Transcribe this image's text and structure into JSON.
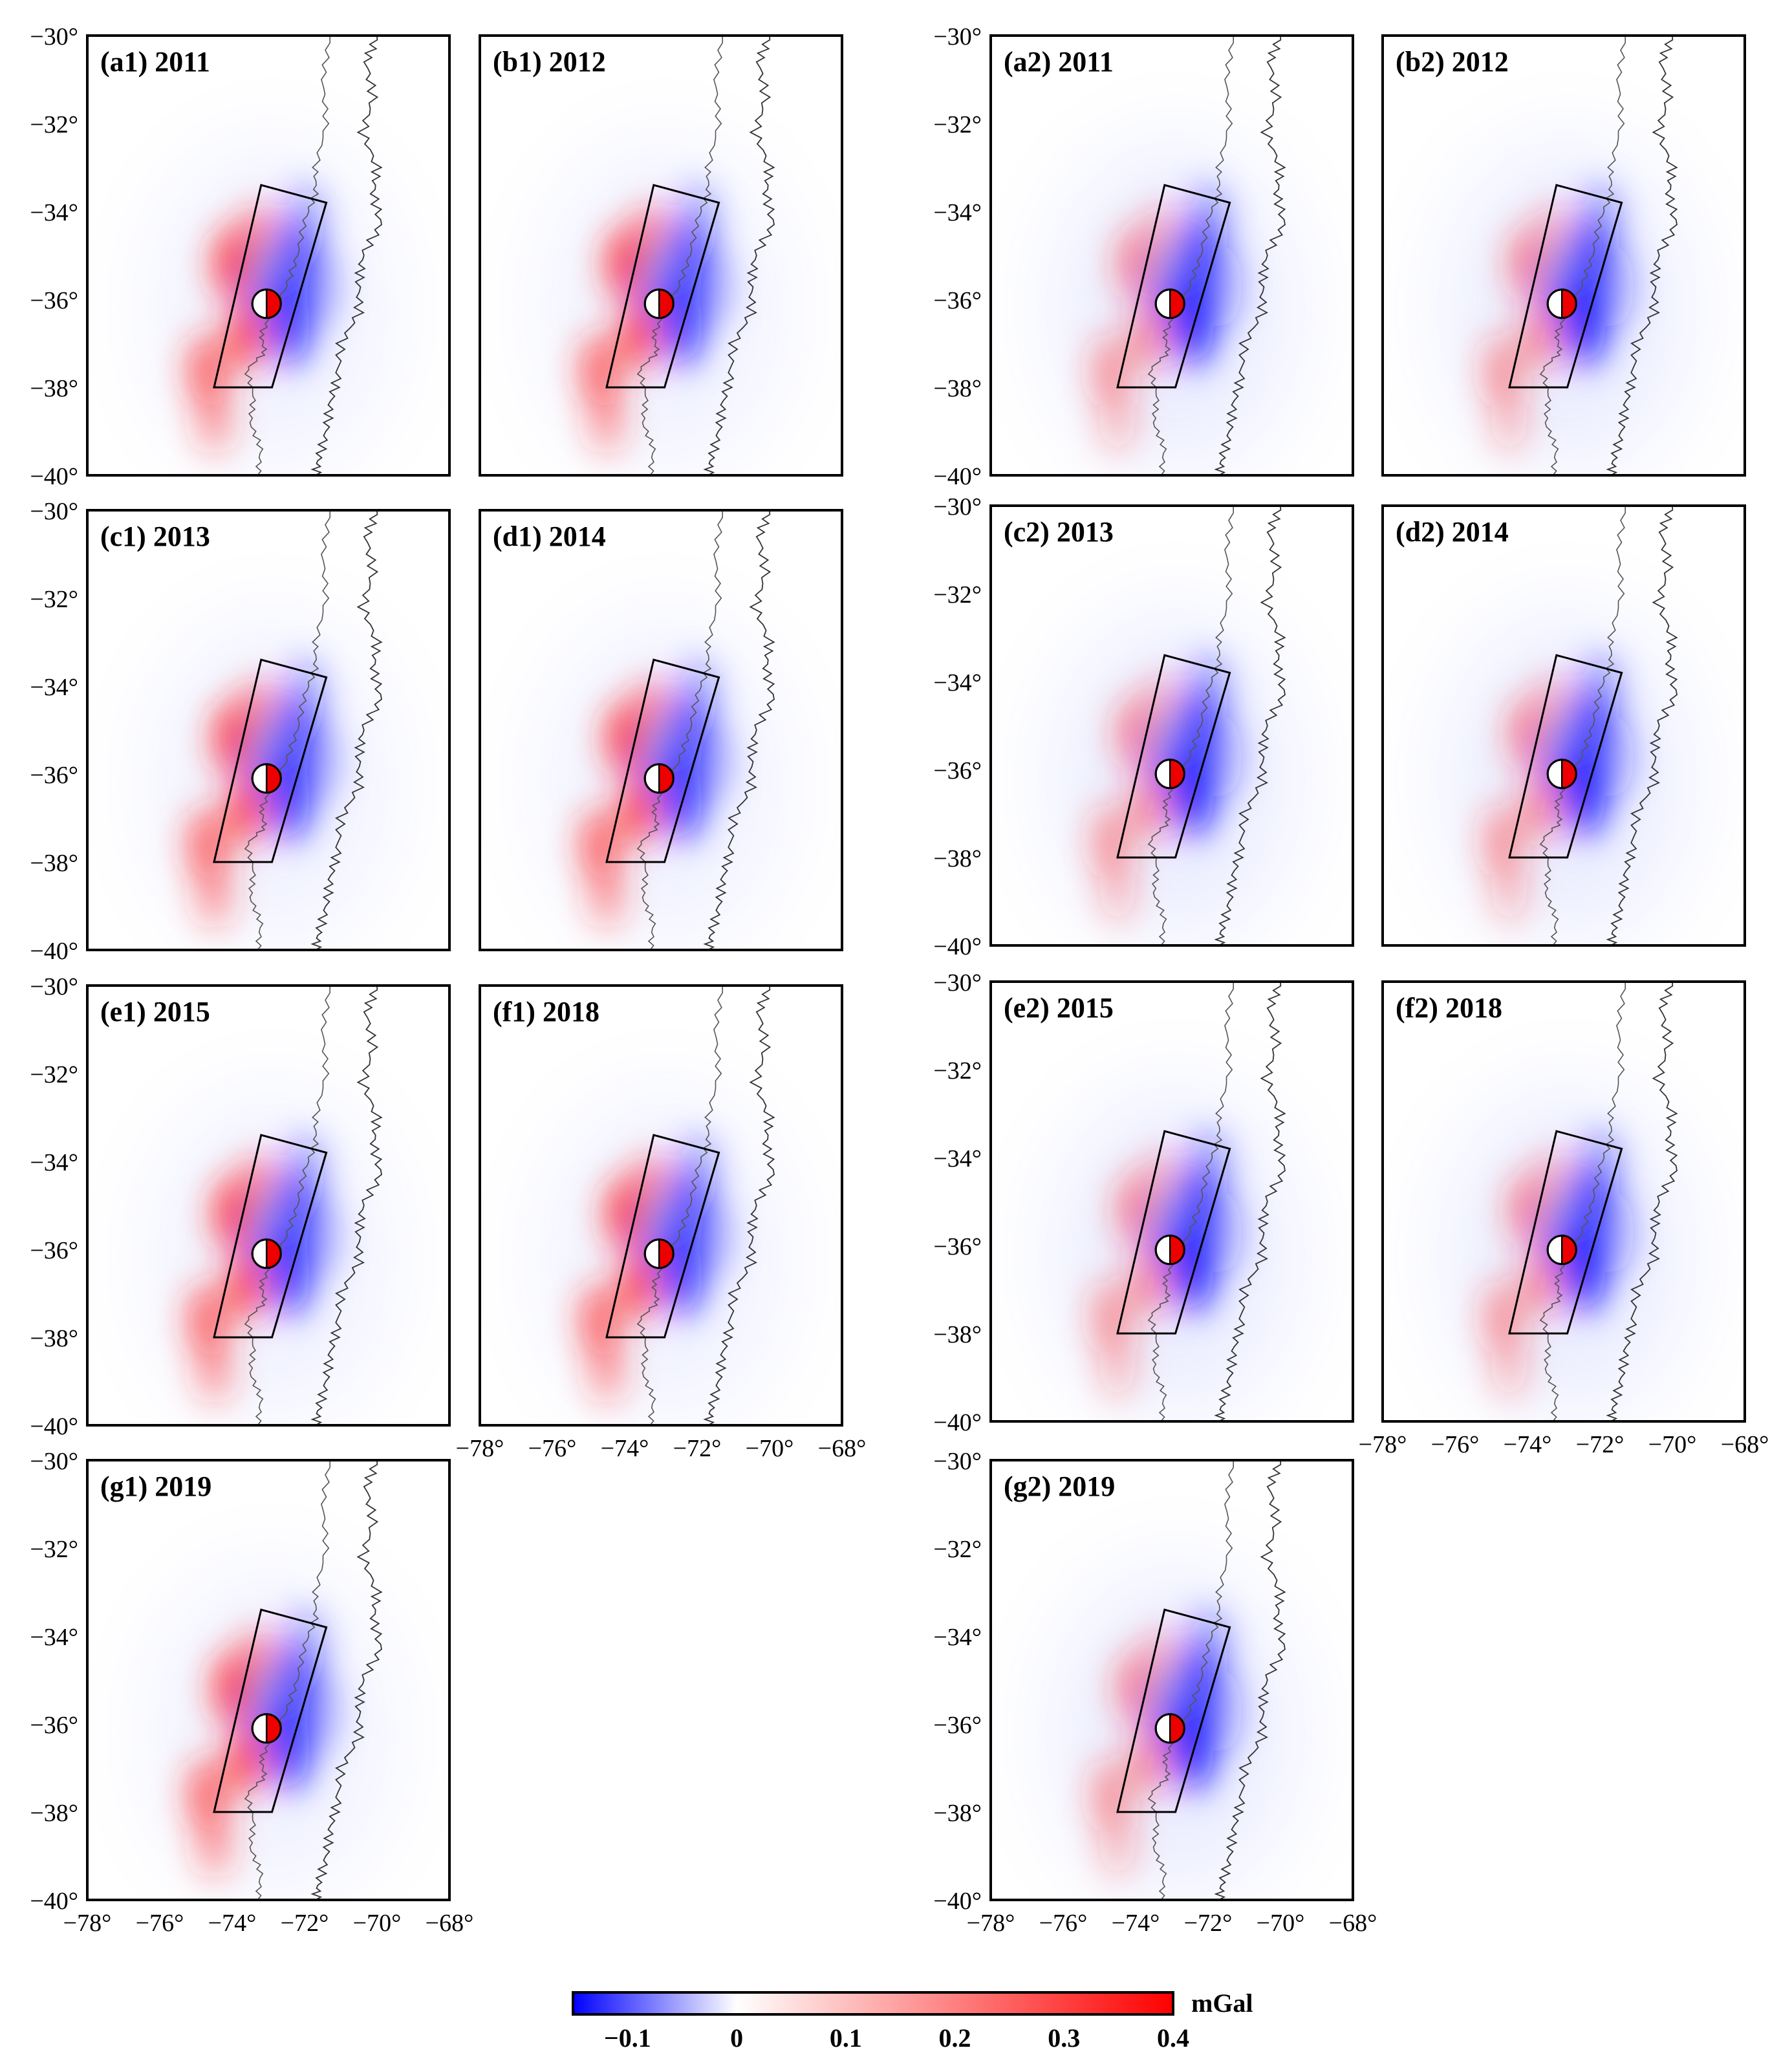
{
  "figure": {
    "unit_label": "mGal",
    "colorbar": {
      "ticks": [
        "−0.1",
        "0",
        "0.1",
        "0.2",
        "0.3",
        "0.4"
      ],
      "tick_values": [
        -0.1,
        0,
        0.1,
        0.2,
        0.3,
        0.4
      ],
      "range": [
        -0.15,
        0.4
      ],
      "colors": {
        "negative": "#0000ff",
        "zero": "#ffffff",
        "positive": "#ff0000"
      }
    },
    "lat_ticks": [
      "−30°",
      "−32°",
      "−34°",
      "−36°",
      "−38°",
      "−40°"
    ],
    "lat_values": [
      -30,
      -32,
      -34,
      -36,
      -38,
      -40
    ],
    "lon_ticks": [
      "−78°",
      "−76°",
      "−74°",
      "−72°",
      "−70°",
      "−68°"
    ],
    "lon_values": [
      -78,
      -76,
      -74,
      -72,
      -70,
      -68
    ],
    "extent": {
      "lon": [
        -78,
        -68
      ],
      "lat": [
        -40,
        -30
      ]
    },
    "fault_box_lonlat": [
      [
        -73.2,
        -33.4
      ],
      [
        -71.4,
        -33.8
      ],
      [
        -72.9,
        -38.0
      ],
      [
        -74.5,
        -38.0
      ]
    ],
    "epicenter_lonlat": [
      -73.05,
      -36.1
    ],
    "beachball_colors": {
      "fill": "#ee0000",
      "stroke": "#000000"
    },
    "panels": [
      {
        "label": "(a1) 2011",
        "group": 1
      },
      {
        "label": "(b1) 2012",
        "group": 1
      },
      {
        "label": "(c1) 2013",
        "group": 1
      },
      {
        "label": "(d1) 2014",
        "group": 1
      },
      {
        "label": "(e1) 2015",
        "group": 1
      },
      {
        "label": "(f1) 2018",
        "group": 1
      },
      {
        "label": "(g1) 2019",
        "group": 1
      },
      {
        "label": "(a2) 2011",
        "group": 2
      },
      {
        "label": "(b2) 2012",
        "group": 2
      },
      {
        "label": "(c2) 2013",
        "group": 2
      },
      {
        "label": "(d2) 2014",
        "group": 2
      },
      {
        "label": "(e2) 2015",
        "group": 2
      },
      {
        "label": "(f2) 2018",
        "group": 2
      },
      {
        "label": "(g2) 2019",
        "group": 2
      }
    ]
  }
}
